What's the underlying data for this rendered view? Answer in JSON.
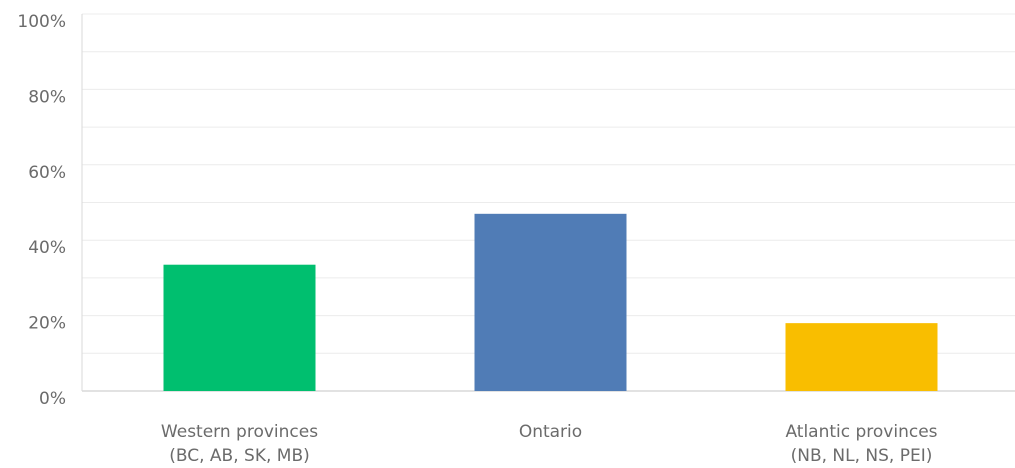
{
  "chart_data": {
    "type": "bar",
    "title": "",
    "xlabel": "",
    "ylabel": "",
    "categories": [
      [
        "Western provinces",
        "(BC, AB, SK, MB)"
      ],
      [
        "Ontario"
      ],
      [
        "Atlantic provinces",
        "(NB, NL, NS, PEI)"
      ]
    ],
    "values": [
      33.5,
      47,
      18
    ],
    "unit": "%",
    "ylim": [
      0,
      100
    ],
    "yticks": [
      "0%",
      "20%",
      "40%",
      "60%",
      "80%",
      "100%"
    ],
    "grid": true,
    "bar_colors": [
      "#00bf6f",
      "#507cb6",
      "#f9be00"
    ],
    "grid_color": "#ececec",
    "axis_color": "#d9d9d9"
  }
}
